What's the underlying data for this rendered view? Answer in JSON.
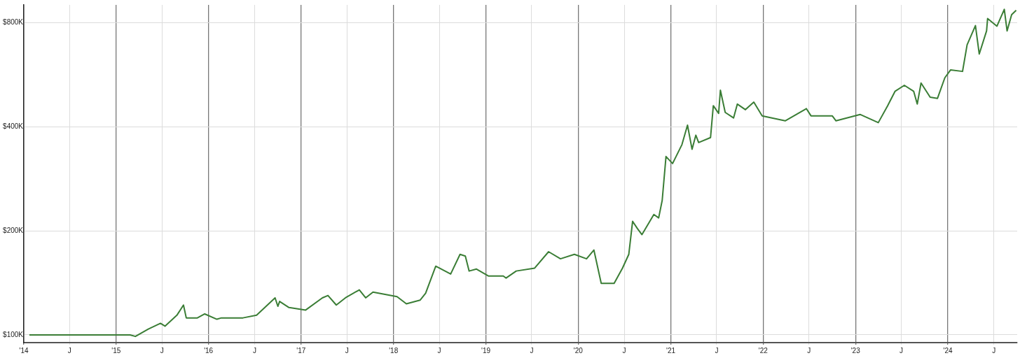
{
  "chart_data": {
    "type": "line",
    "log": "y",
    "grid": true,
    "legend": false,
    "marker": "none",
    "line_style": "solid",
    "xlim": [
      "2014-01-01",
      "2024-10-01"
    ],
    "xticks": [
      {
        "value": "2014-01-01",
        "label": "'14"
      },
      {
        "value": "2014-07-01",
        "label": "J"
      },
      {
        "value": "2015-01-01",
        "label": "'15"
      },
      {
        "value": "2015-07-01",
        "label": "J"
      },
      {
        "value": "2016-01-01",
        "label": "'16"
      },
      {
        "value": "2016-07-01",
        "label": "J"
      },
      {
        "value": "2017-01-01",
        "label": "'17"
      },
      {
        "value": "2017-07-01",
        "label": "J"
      },
      {
        "value": "2018-01-01",
        "label": "'18"
      },
      {
        "value": "2018-07-01",
        "label": "J"
      },
      {
        "value": "2019-01-01",
        "label": "'19"
      },
      {
        "value": "2019-07-01",
        "label": "J"
      },
      {
        "value": "2020-01-01",
        "label": "'20"
      },
      {
        "value": "2020-07-01",
        "label": "J"
      },
      {
        "value": "2021-01-01",
        "label": "'21"
      },
      {
        "value": "2021-07-01",
        "label": "J"
      },
      {
        "value": "2022-01-01",
        "label": "'22"
      },
      {
        "value": "2022-07-01",
        "label": "J"
      },
      {
        "value": "2023-01-01",
        "label": "'23"
      },
      {
        "value": "2023-07-01",
        "label": "J"
      },
      {
        "value": "2024-01-01",
        "label": "'24"
      },
      {
        "value": "2024-07-01",
        "label": "J"
      }
    ],
    "ylim": [
      95000,
      900000
    ],
    "yticks": [
      {
        "value": 100000,
        "label": "$100K"
      },
      {
        "value": 200000,
        "label": "$200K"
      },
      {
        "value": 400000,
        "label": "$400K"
      },
      {
        "value": 800000,
        "label": "$800K"
      }
    ],
    "x": [
      "2014-01-23",
      "2015-02-25",
      "2015-03-18",
      "2015-05-08",
      "2015-06-25",
      "2015-07-13",
      "2015-08-29",
      "2015-09-24",
      "2015-10-05",
      "2015-11-18",
      "2015-12-17",
      "2016-02-03",
      "2016-02-21",
      "2016-05-16",
      "2016-07-09",
      "2016-09-20",
      "2016-10-01",
      "2016-10-08",
      "2016-11-14",
      "2017-01-19",
      "2017-03-26",
      "2017-04-17",
      "2017-05-20",
      "2017-06-25",
      "2017-08-19",
      "2017-09-13",
      "2017-10-12",
      "2018-01-15",
      "2018-02-21",
      "2018-04-16",
      "2018-05-08",
      "2018-06-17",
      "2018-08-15",
      "2018-09-21",
      "2018-10-12",
      "2018-10-27",
      "2018-11-25",
      "2019-01-12",
      "2019-03-11",
      "2019-03-22",
      "2019-05-01",
      "2019-07-13",
      "2019-09-06",
      "2019-10-23",
      "2019-12-17",
      "2020-02-03",
      "2020-03-03",
      "2020-04-01",
      "2020-05-22",
      "2020-06-24",
      "2020-07-19",
      "2020-08-03",
      "2020-08-22",
      "2020-09-09",
      "2020-10-26",
      "2020-11-14",
      "2020-11-28",
      "2020-12-13",
      "2021-01-08",
      "2021-02-14",
      "2021-03-08",
      "2021-03-26",
      "2021-04-10",
      "2021-04-21",
      "2021-06-07",
      "2021-06-18",
      "2021-07-09",
      "2021-07-16",
      "2021-08-04",
      "2021-09-06",
      "2021-09-21",
      "2021-10-23",
      "2021-11-25",
      "2021-12-28",
      "2022-03-29",
      "2022-06-21",
      "2022-07-09",
      "2022-10-01",
      "2022-10-16",
      "2023-01-19",
      "2023-04-01",
      "2023-05-08",
      "2023-06-06",
      "2023-07-13",
      "2023-08-19",
      "2023-09-02",
      "2023-09-17",
      "2023-10-23",
      "2023-11-21",
      "2023-12-20",
      "2024-01-12",
      "2024-02-28",
      "2024-03-17",
      "2024-04-19",
      "2024-05-04",
      "2024-06-02",
      "2024-06-06",
      "2024-07-13",
      "2024-08-11",
      "2024-08-22",
      "2024-09-09",
      "2024-09-27"
    ],
    "series": [
      {
        "color": "#3a7d35",
        "values": [
          100000,
          100000,
          99000,
          104000,
          108000,
          106000,
          114000,
          122000,
          112000,
          112000,
          115000,
          111000,
          112000,
          112000,
          114000,
          128000,
          121000,
          125000,
          120000,
          118000,
          128000,
          130000,
          122000,
          128000,
          135000,
          128000,
          133000,
          129000,
          123000,
          126000,
          132000,
          158000,
          150000,
          171000,
          169000,
          153000,
          155000,
          148000,
          148000,
          146000,
          153000,
          156000,
          174000,
          166000,
          171000,
          166000,
          176000,
          141000,
          141000,
          156000,
          171000,
          213000,
          203000,
          195000,
          223000,
          218000,
          245000,
          328000,
          313000,
          355000,
          404000,
          344000,
          378000,
          360000,
          372000,
          460000,
          437000,
          510000,
          440000,
          424000,
          465000,
          448000,
          471000,
          430000,
          416000,
          451000,
          430000,
          430000,
          416000,
          434000,
          411000,
          460000,
          506000,
          527000,
          506000,
          465000,
          535000,
          487000,
          483000,
          554000,
          584000,
          578000,
          690000,
          784000,
          649000,
          757000,
          822000,
          781000,
          874000,
          757000,
          843000,
          868000
        ]
      }
    ]
  }
}
